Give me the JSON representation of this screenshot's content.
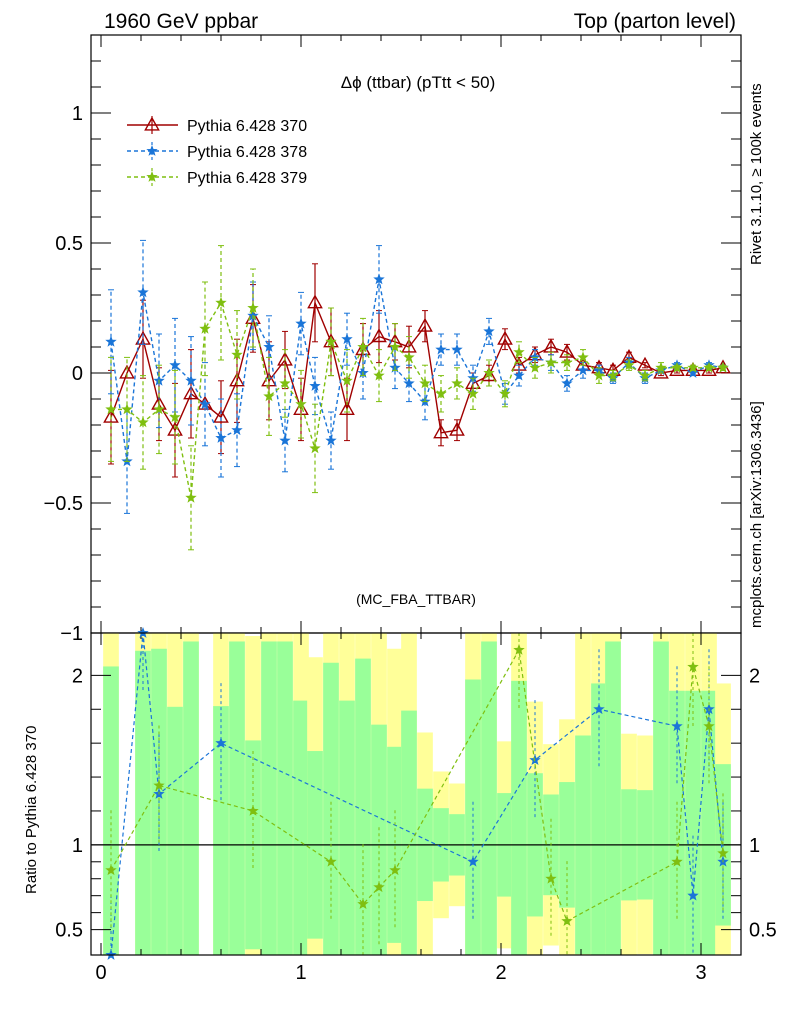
{
  "header": {
    "left": "1960 GeV ppbar",
    "right": "Top (parton level)"
  },
  "side_labels": {
    "rivet": "Rivet 3.1.10, ≥ 100k events",
    "mcplots": "mcplots.cern.ch [arXiv:1306.3436]"
  },
  "chart_data": [
    {
      "type": "line",
      "title": "Δϕ (ttbar) (pTtt < 50)",
      "watermark": "(MC_FBA_TTBAR)",
      "xlim": [
        -0.05,
        3.2
      ],
      "ylim": [
        -1.0,
        1.3
      ],
      "x_ticks": [
        0,
        1,
        2,
        3
      ],
      "y_ticks": [
        -1,
        -0.5,
        0,
        0.5,
        1
      ],
      "y_tick_labels": [
        "−1",
        "−0.5",
        "0",
        "0.5",
        "1"
      ],
      "legend_position": "top-left",
      "x": [
        0.05,
        0.13,
        0.21,
        0.29,
        0.37,
        0.45,
        0.52,
        0.6,
        0.68,
        0.76,
        0.84,
        0.92,
        1.0,
        1.07,
        1.15,
        1.23,
        1.31,
        1.39,
        1.47,
        1.54,
        1.62,
        1.7,
        1.78,
        1.86,
        1.94,
        2.02,
        2.09,
        2.17,
        2.25,
        2.33,
        2.41,
        2.49,
        2.56,
        2.64,
        2.72,
        2.8,
        2.88,
        2.96,
        3.04,
        3.11
      ],
      "series": [
        {
          "name": "Pythia 6.428 370",
          "color": "#a00000",
          "dash": "solid",
          "marker": "triangle",
          "values": [
            -0.17,
            0.0,
            0.13,
            -0.12,
            -0.22,
            -0.08,
            -0.12,
            -0.17,
            -0.03,
            0.21,
            -0.03,
            0.05,
            -0.14,
            0.27,
            0.12,
            -0.14,
            0.09,
            0.14,
            0.12,
            0.1,
            0.18,
            -0.23,
            -0.22,
            -0.04,
            -0.01,
            0.13,
            0.03,
            0.07,
            0.1,
            0.08,
            0.03,
            0.02,
            0.01,
            0.06,
            0.03,
            0.0,
            0.01,
            0.01,
            0.01,
            0.02
          ],
          "errors": [
            0.18,
            0.0,
            0.15,
            0.14,
            0.18,
            0.17,
            0.0,
            0.14,
            0.16,
            0.13,
            0.15,
            0.11,
            0.12,
            0.15,
            0.13,
            0.12,
            0.1,
            0.1,
            0.07,
            0.08,
            0.06,
            0.05,
            0.04,
            0.04,
            0.04,
            0.04,
            0.03,
            0.03,
            0.03,
            0.03,
            0.02,
            0.02,
            0.02,
            0.02,
            0.01,
            0.01,
            0.01,
            0.01,
            0.01,
            0.01
          ]
        },
        {
          "name": "Pythia 6.428 378",
          "color": "#1a75d8",
          "dash": "4,3",
          "marker": "star",
          "values": [
            0.12,
            -0.34,
            0.31,
            -0.03,
            0.03,
            -0.03,
            -0.12,
            -0.25,
            -0.22,
            0.22,
            0.1,
            -0.26,
            0.19,
            -0.05,
            -0.26,
            0.13,
            0.0,
            0.36,
            0.02,
            -0.04,
            -0.11,
            0.09,
            0.09,
            -0.02,
            0.16,
            -0.08,
            -0.01,
            0.06,
            0.04,
            -0.04,
            0.01,
            0.01,
            -0.02,
            0.04,
            -0.02,
            0.01,
            0.03,
            0.0,
            0.03,
            0.02
          ],
          "errors": [
            0.2,
            0.2,
            0.2,
            0.18,
            0.18,
            0.17,
            0.16,
            0.15,
            0.14,
            0.13,
            0.12,
            0.12,
            0.12,
            0.11,
            0.11,
            0.1,
            0.1,
            0.13,
            0.08,
            0.07,
            0.07,
            0.06,
            0.06,
            0.05,
            0.05,
            0.04,
            0.04,
            0.03,
            0.03,
            0.03,
            0.03,
            0.02,
            0.02,
            0.02,
            0.02,
            0.01,
            0.01,
            0.01,
            0.01,
            0.01
          ]
        },
        {
          "name": "Pythia 6.428 379",
          "color": "#7fbf10",
          "dash": "4,3",
          "marker": "star",
          "values": [
            -0.14,
            -0.14,
            -0.19,
            -0.14,
            -0.17,
            -0.48,
            0.17,
            0.27,
            0.07,
            0.25,
            -0.09,
            -0.04,
            -0.12,
            -0.29,
            0.12,
            -0.03,
            0.1,
            -0.01,
            0.1,
            0.06,
            -0.04,
            -0.08,
            -0.04,
            -0.08,
            0.0,
            -0.08,
            0.08,
            0.02,
            0.04,
            0.04,
            0.06,
            -0.01,
            -0.01,
            0.03,
            -0.01,
            0.02,
            0.02,
            0.02,
            0.02,
            0.02
          ],
          "errors": [
            0.2,
            0.2,
            0.18,
            0.17,
            0.18,
            0.2,
            0.18,
            0.22,
            0.17,
            0.15,
            0.15,
            0.13,
            0.13,
            0.17,
            0.13,
            0.12,
            0.11,
            0.1,
            0.09,
            0.08,
            0.07,
            0.07,
            0.06,
            0.06,
            0.05,
            0.05,
            0.04,
            0.04,
            0.04,
            0.03,
            0.03,
            0.03,
            0.02,
            0.02,
            0.02,
            0.02,
            0.01,
            0.01,
            0.01,
            0.01
          ]
        }
      ]
    },
    {
      "type": "line",
      "ylabel": "Ratio to Pythia 6.428 370",
      "xlim": [
        -0.05,
        3.2
      ],
      "ylim": [
        0.35,
        2.25
      ],
      "x_ticks": [
        0,
        1,
        2,
        3
      ],
      "x_tick_labels": [
        "0",
        "1",
        "2",
        "3"
      ],
      "y_ticks": [
        0.5,
        1,
        2
      ],
      "y_tick_labels": [
        "0.5",
        "1",
        "2"
      ],
      "reference_line": 1,
      "band_colors": {
        "one_sigma": "#99ff99",
        "two_sigma": "#ffff99"
      },
      "series": [
        {
          "name": "Pythia 6.428 378",
          "color": "#1a75d8",
          "x": [
            0.05,
            0.21,
            0.29,
            0.6,
            1.86,
            2.17,
            2.49,
            2.88,
            2.96,
            3.04,
            3.11
          ],
          "values": [
            0.2,
            2.35,
            1.3,
            1.6,
            0.9,
            1.5,
            1.8,
            1.7,
            0.7,
            1.8,
            0.9
          ]
        },
        {
          "name": "Pythia 6.428 379",
          "color": "#7fbf10",
          "x": [
            0.05,
            0.29,
            0.76,
            1.15,
            1.31,
            1.39,
            1.47,
            2.09,
            2.25,
            2.33,
            2.88,
            2.96,
            3.04,
            3.11
          ],
          "values": [
            0.85,
            1.35,
            1.2,
            0.9,
            0.65,
            0.75,
            0.85,
            2.15,
            0.8,
            0.55,
            0.9,
            2.05,
            1.7,
            0.95
          ]
        }
      ]
    }
  ]
}
